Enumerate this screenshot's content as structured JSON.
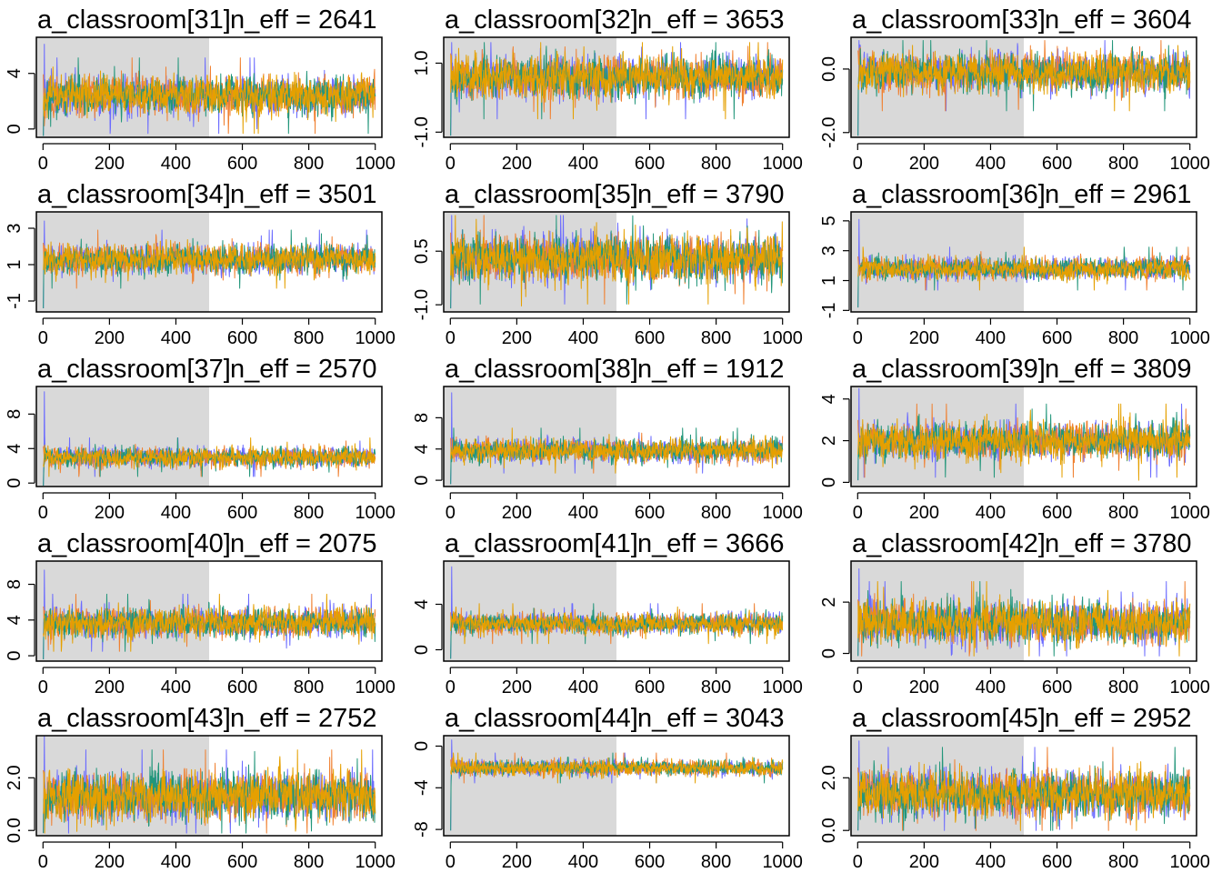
{
  "figure": {
    "colors": {
      "chain_1": "#6b6bff",
      "chain_2": "#f08030",
      "chain_3": "#22967a",
      "chain_4": "#e5a000",
      "warmup_shade": "#d9d9d9"
    }
  },
  "chart_data": [
    {
      "type": "line",
      "title": "a_classroom[31]",
      "eff_label": "n_eff = 2641",
      "x_ticks": [
        "0",
        "200",
        "400",
        "600",
        "800",
        "1000"
      ],
      "y_ticks": [
        "0",
        "4"
      ],
      "y_tick_values": [
        0,
        4
      ],
      "ylim": [
        -0.6,
        6.6
      ],
      "xlim": [
        -20,
        1020
      ],
      "warmup_end": 500,
      "iterations": 1000,
      "chains": 4,
      "series_summary": {
        "center": 2.4,
        "spread": 0.85,
        "min": -0.5,
        "max": 6.1
      }
    },
    {
      "type": "line",
      "title": "a_classroom[32]",
      "eff_label": "n_eff = 3653",
      "x_ticks": [
        "0",
        "200",
        "400",
        "600",
        "800",
        "1000"
      ],
      "y_ticks": [
        "-1.0",
        "1.0"
      ],
      "y_tick_values": [
        -1.0,
        1.0
      ],
      "ylim": [
        -1.15,
        1.75
      ],
      "xlim": [
        -20,
        1020
      ],
      "warmup_end": 500,
      "iterations": 1000,
      "chains": 4,
      "series_summary": {
        "center": 0.6,
        "spread": 0.38,
        "min": -1.1,
        "max": 1.6
      }
    },
    {
      "type": "line",
      "title": "a_classroom[33]",
      "eff_label": "n_eff = 3604",
      "x_ticks": [
        "0",
        "200",
        "400",
        "600",
        "800",
        "1000"
      ],
      "y_ticks": [
        "-2.0",
        "0.0"
      ],
      "y_tick_values": [
        -2.0,
        0.0
      ],
      "ylim": [
        -2.15,
        1.0
      ],
      "xlim": [
        -20,
        1020
      ],
      "warmup_end": 500,
      "iterations": 1000,
      "chains": 4,
      "series_summary": {
        "center": -0.1,
        "spread": 0.38,
        "min": -2.1,
        "max": 0.9
      }
    },
    {
      "type": "line",
      "title": "a_classroom[34]",
      "eff_label": "n_eff = 3501",
      "x_ticks": [
        "0",
        "200",
        "400",
        "600",
        "800",
        "1000"
      ],
      "y_ticks": [
        "-1",
        "1",
        "3"
      ],
      "y_tick_values": [
        -1,
        1,
        3
      ],
      "ylim": [
        -1.6,
        3.9
      ],
      "xlim": [
        -20,
        1020
      ],
      "warmup_end": 500,
      "iterations": 1000,
      "chains": 4,
      "series_summary": {
        "center": 1.3,
        "spread": 0.5,
        "min": -1.4,
        "max": 3.4
      }
    },
    {
      "type": "line",
      "title": "a_classroom[35]",
      "eff_label": "n_eff = 3790",
      "x_ticks": [
        "0",
        "200",
        "400",
        "600",
        "800",
        "1000"
      ],
      "y_ticks": [
        "-1.0",
        "0.5"
      ],
      "y_tick_values": [
        -1.0,
        0.5
      ],
      "ylim": [
        -1.2,
        1.6
      ],
      "xlim": [
        -20,
        1020
      ],
      "warmup_end": 500,
      "iterations": 1000,
      "chains": 4,
      "series_summary": {
        "center": 0.3,
        "spread": 0.4,
        "min": -1.1,
        "max": 1.5
      }
    },
    {
      "type": "line",
      "title": "a_classroom[36]",
      "eff_label": "n_eff = 2961",
      "x_ticks": [
        "0",
        "200",
        "400",
        "600",
        "800",
        "1000"
      ],
      "y_ticks": [
        "-1",
        "1",
        "3",
        "5"
      ],
      "y_tick_values": [
        -1,
        1,
        3,
        5
      ],
      "ylim": [
        -1.1,
        5.6
      ],
      "xlim": [
        -20,
        1020
      ],
      "warmup_end": 500,
      "iterations": 1000,
      "chains": 4,
      "series_summary": {
        "center": 1.8,
        "spread": 0.45,
        "min": -0.8,
        "max": 5.1
      }
    },
    {
      "type": "line",
      "title": "a_classroom[37]",
      "eff_label": "n_eff = 2570",
      "x_ticks": [
        "0",
        "200",
        "400",
        "600",
        "800",
        "1000"
      ],
      "y_ticks": [
        "0",
        "4",
        "8"
      ],
      "y_tick_values": [
        0,
        4,
        8
      ],
      "ylim": [
        -0.4,
        11.2
      ],
      "xlim": [
        -20,
        1020
      ],
      "warmup_end": 500,
      "iterations": 1000,
      "chains": 4,
      "series_summary": {
        "center": 3.0,
        "spread": 0.7,
        "min": -0.3,
        "max": 10.6
      }
    },
    {
      "type": "line",
      "title": "a_classroom[38]",
      "eff_label": "n_eff = 1912",
      "x_ticks": [
        "0",
        "200",
        "400",
        "600",
        "800",
        "1000"
      ],
      "y_ticks": [
        "0",
        "4",
        "8"
      ],
      "y_tick_values": [
        0,
        4,
        8
      ],
      "ylim": [
        -0.8,
        12.0
      ],
      "xlim": [
        -20,
        1020
      ],
      "warmup_end": 500,
      "iterations": 1000,
      "chains": 4,
      "series_summary": {
        "center": 3.8,
        "spread": 0.9,
        "min": -0.5,
        "max": 11.2
      }
    },
    {
      "type": "line",
      "title": "a_classroom[39]",
      "eff_label": "n_eff = 3809",
      "x_ticks": [
        "0",
        "200",
        "400",
        "600",
        "800",
        "1000"
      ],
      "y_ticks": [
        "0",
        "2",
        "4"
      ],
      "y_tick_values": [
        0,
        2,
        4
      ],
      "ylim": [
        -0.2,
        4.6
      ],
      "xlim": [
        -20,
        1020
      ],
      "warmup_end": 500,
      "iterations": 1000,
      "chains": 4,
      "series_summary": {
        "center": 2.0,
        "spread": 0.55,
        "min": 0.1,
        "max": 4.5
      }
    },
    {
      "type": "line",
      "title": "a_classroom[40]",
      "eff_label": "n_eff = 2075",
      "x_ticks": [
        "0",
        "200",
        "400",
        "600",
        "800",
        "1000"
      ],
      "y_ticks": [
        "0",
        "4",
        "8"
      ],
      "y_tick_values": [
        0,
        4,
        8
      ],
      "ylim": [
        -0.6,
        10.6
      ],
      "xlim": [
        -20,
        1020
      ],
      "warmup_end": 500,
      "iterations": 1000,
      "chains": 4,
      "series_summary": {
        "center": 3.7,
        "spread": 1.0,
        "min": -0.4,
        "max": 9.6
      }
    },
    {
      "type": "line",
      "title": "a_classroom[41]",
      "eff_label": "n_eff = 3666",
      "x_ticks": [
        "0",
        "200",
        "400",
        "600",
        "800",
        "1000"
      ],
      "y_ticks": [
        "0",
        "4"
      ],
      "y_tick_values": [
        0,
        4
      ],
      "ylim": [
        -1.0,
        7.8
      ],
      "xlim": [
        -20,
        1020
      ],
      "warmup_end": 500,
      "iterations": 1000,
      "chains": 4,
      "series_summary": {
        "center": 2.3,
        "spread": 0.55,
        "min": -0.8,
        "max": 7.3
      }
    },
    {
      "type": "line",
      "title": "a_classroom[42]",
      "eff_label": "n_eff = 3780",
      "x_ticks": [
        "0",
        "200",
        "400",
        "600",
        "800",
        "1000"
      ],
      "y_ticks": [
        "0",
        "2"
      ],
      "y_tick_values": [
        0,
        2
      ],
      "ylim": [
        -0.3,
        3.6
      ],
      "xlim": [
        -20,
        1020
      ],
      "warmup_end": 500,
      "iterations": 1000,
      "chains": 4,
      "series_summary": {
        "center": 1.2,
        "spread": 0.5,
        "min": -0.1,
        "max": 3.3
      }
    },
    {
      "type": "line",
      "title": "a_classroom[43]",
      "eff_label": "n_eff = 2752",
      "x_ticks": [
        "0",
        "200",
        "400",
        "600",
        "800",
        "1000"
      ],
      "y_ticks": [
        "0.0",
        "2.0"
      ],
      "y_tick_values": [
        0.0,
        2.0
      ],
      "ylim": [
        -0.2,
        3.6
      ],
      "xlim": [
        -20,
        1020
      ],
      "warmup_end": 500,
      "iterations": 1000,
      "chains": 4,
      "series_summary": {
        "center": 1.3,
        "spread": 0.55,
        "min": -0.1,
        "max": 3.6
      }
    },
    {
      "type": "line",
      "title": "a_classroom[44]",
      "eff_label": "n_eff = 3043",
      "x_ticks": [
        "0",
        "200",
        "400",
        "600",
        "800",
        "1000"
      ],
      "y_ticks": [
        "-8",
        "-4",
        "0"
      ],
      "y_tick_values": [
        -8,
        -4,
        0
      ],
      "ylim": [
        -8.6,
        1.0
      ],
      "xlim": [
        -20,
        1020
      ],
      "warmup_end": 500,
      "iterations": 1000,
      "chains": 4,
      "series_summary": {
        "center": -2.1,
        "spread": 0.45,
        "min": -8.1,
        "max": 0.6
      }
    },
    {
      "type": "line",
      "title": "a_classroom[45]",
      "eff_label": "n_eff = 2952",
      "x_ticks": [
        "0",
        "200",
        "400",
        "600",
        "800",
        "1000"
      ],
      "y_ticks": [
        "0.0",
        "2.0"
      ],
      "y_tick_values": [
        0.0,
        2.0
      ],
      "ylim": [
        -0.2,
        3.6
      ],
      "xlim": [
        -20,
        1020
      ],
      "warmup_end": 500,
      "iterations": 1000,
      "chains": 4,
      "series_summary": {
        "center": 1.4,
        "spread": 0.55,
        "min": 0.0,
        "max": 3.4
      }
    }
  ]
}
